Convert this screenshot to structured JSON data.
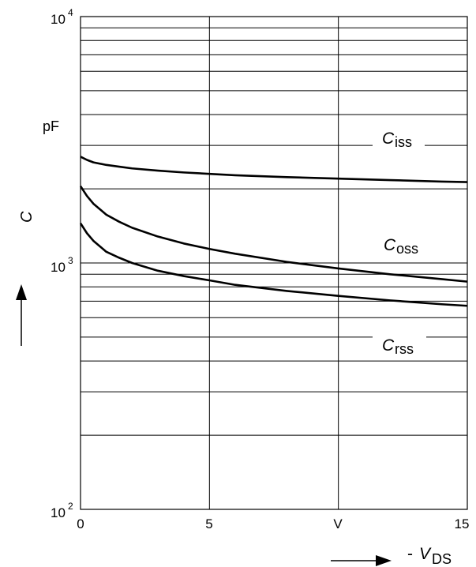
{
  "chart_data": {
    "type": "line",
    "title": "",
    "x_axis": {
      "label_prefix": "- ",
      "label_main": "V",
      "label_sub": "DS",
      "range": [
        0,
        15
      ],
      "tick_labels": [
        "0",
        "5",
        "V",
        "15"
      ]
    },
    "y_axis": {
      "label": "C",
      "unit": "pF",
      "scale": "log",
      "range": [
        100,
        10000
      ],
      "tick_labels": [
        {
          "base": "10",
          "exp": "2"
        },
        {
          "base": "10",
          "exp": "3"
        },
        {
          "base": "10",
          "exp": "4"
        }
      ]
    },
    "grid": true,
    "series": [
      {
        "name_main": "C",
        "name_sub": "iss",
        "x": [
          0,
          0.25,
          0.5,
          1,
          1.5,
          2,
          3,
          4,
          5,
          6,
          8,
          10,
          12,
          14,
          15
        ],
        "y": [
          2700,
          2620,
          2560,
          2500,
          2460,
          2420,
          2370,
          2330,
          2300,
          2270,
          2230,
          2200,
          2170,
          2140,
          2130
        ]
      },
      {
        "name_main": "C",
        "name_sub": "oss",
        "x": [
          0,
          0.25,
          0.5,
          1,
          1.5,
          2,
          3,
          4,
          5,
          6,
          8,
          10,
          12,
          14,
          15
        ],
        "y": [
          2050,
          1870,
          1740,
          1570,
          1470,
          1390,
          1280,
          1200,
          1140,
          1090,
          1010,
          950,
          900,
          860,
          840
        ]
      },
      {
        "name_main": "C",
        "name_sub": "rss",
        "x": [
          0,
          0.25,
          0.5,
          1,
          1.5,
          2,
          3,
          4,
          5,
          6,
          8,
          10,
          12,
          14,
          15
        ],
        "y": [
          1450,
          1320,
          1230,
          1110,
          1050,
          1000,
          930,
          885,
          850,
          815,
          770,
          735,
          705,
          680,
          670
        ]
      }
    ]
  }
}
